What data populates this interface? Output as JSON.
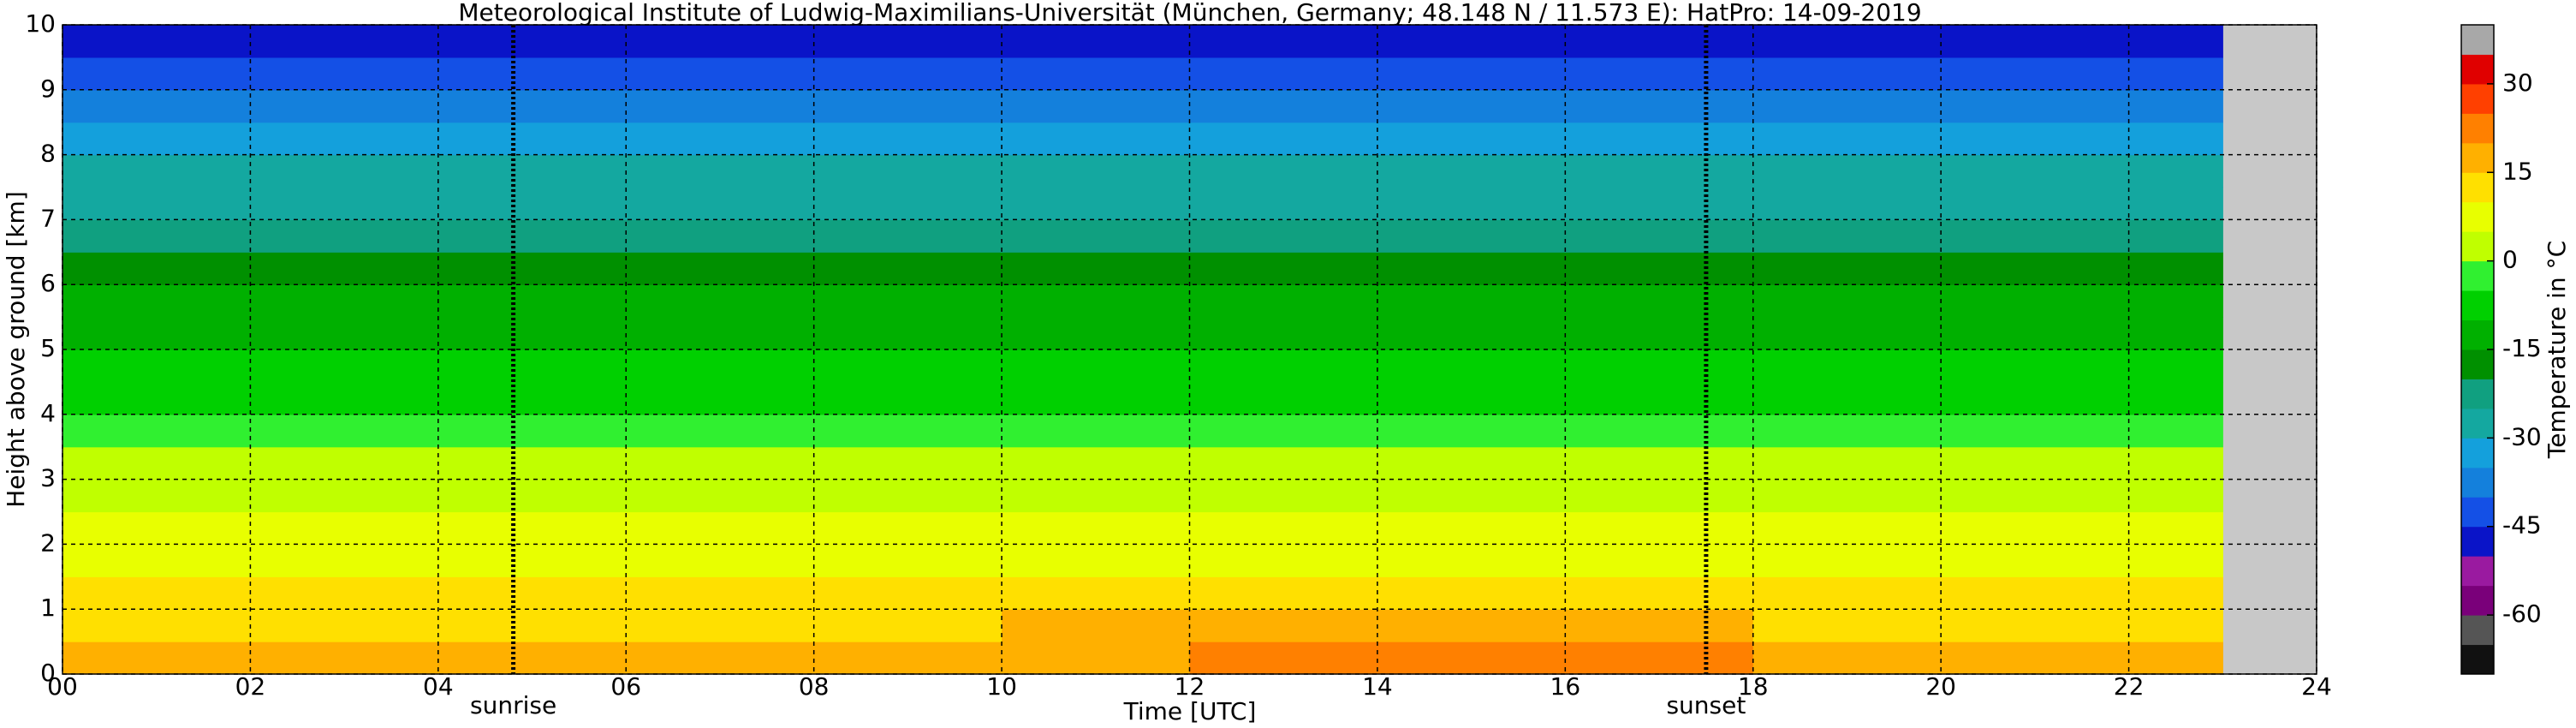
{
  "chart_data": {
    "type": "heatmap",
    "title": "Meteorological Institute of Ludwig-Maximilians-Universität (München, Germany; 48.148 N / 11.573 E):    HatPro: 14-09-2019",
    "xlabel": "Time [UTC]",
    "ylabel": "Height above ground [km]",
    "colorbar_label": "Temperature in °C",
    "xlim": [
      0,
      24
    ],
    "ylim": [
      0,
      10
    ],
    "xticks": [
      {
        "value": 0,
        "label": "00"
      },
      {
        "value": 2,
        "label": "02"
      },
      {
        "value": 4,
        "label": "04"
      },
      {
        "value": 6,
        "label": "06"
      },
      {
        "value": 8,
        "label": "08"
      },
      {
        "value": 10,
        "label": "10"
      },
      {
        "value": 12,
        "label": "12"
      },
      {
        "value": 14,
        "label": "14"
      },
      {
        "value": 16,
        "label": "16"
      },
      {
        "value": 18,
        "label": "18"
      },
      {
        "value": 20,
        "label": "20"
      },
      {
        "value": 22,
        "label": "22"
      },
      {
        "value": 24,
        "label": "24"
      }
    ],
    "yticks": [
      0,
      1,
      2,
      3,
      4,
      5,
      6,
      7,
      8,
      9,
      10
    ],
    "grid": true,
    "clim": [
      -70,
      40
    ],
    "cticks": [
      30,
      15,
      0,
      -15,
      -30,
      -45,
      -60
    ],
    "colormap": [
      "#111111",
      "#555555",
      "#7a007a",
      "#9a1aa0",
      "#0a14c8",
      "#1450e6",
      "#1480dc",
      "#14a0dc",
      "#14a8a0",
      "#10a080",
      "#009000",
      "#00b000",
      "#00d000",
      "#30f030",
      "#c0ff00",
      "#e8ff00",
      "#ffe000",
      "#ffb000",
      "#ff8000",
      "#ff4000",
      "#e00000",
      "#a8a8a8"
    ],
    "x_edges": [
      0,
      2,
      4,
      6,
      8,
      10,
      12,
      14,
      16,
      18,
      20,
      22,
      23
    ],
    "y_edges": [
      0,
      0.5,
      1,
      1.5,
      2,
      2.5,
      3,
      3.5,
      4,
      4.5,
      5,
      5.5,
      6,
      6.5,
      7,
      7.5,
      8,
      8.5,
      9,
      9.5,
      10
    ],
    "values": [
      [
        16,
        15,
        15,
        16,
        17,
        19,
        22,
        22,
        20,
        18,
        17,
        16
      ],
      [
        14,
        13,
        13,
        13,
        14,
        15,
        16,
        16,
        15,
        14,
        14,
        13
      ],
      [
        11,
        11,
        10,
        10,
        11,
        12,
        12,
        12,
        12,
        11,
        11,
        11
      ],
      [
        9,
        9,
        8,
        8,
        9,
        9,
        9,
        9,
        9,
        9,
        9,
        9
      ],
      [
        6,
        6,
        6,
        6,
        6,
        6,
        6,
        6,
        6,
        6,
        6,
        6
      ],
      [
        4,
        4,
        3,
        3,
        4,
        4,
        4,
        4,
        4,
        4,
        4,
        4
      ],
      [
        1,
        1,
        1,
        1,
        1,
        1,
        0,
        0,
        1,
        1,
        1,
        1
      ],
      [
        -3,
        -3,
        -3,
        -2,
        -3,
        -3,
        -3,
        -3,
        -3,
        -3,
        -3,
        -3
      ],
      [
        -6,
        -6,
        -6,
        -6,
        -6,
        -6,
        -6,
        -6,
        -6,
        -6,
        -6,
        -6
      ],
      [
        -9,
        -9,
        -9,
        -9,
        -9,
        -9,
        -9,
        -9,
        -9,
        -9,
        -9,
        -9
      ],
      [
        -12,
        -12,
        -12,
        -12,
        -12,
        -12,
        -12,
        -12,
        -12,
        -12,
        -12,
        -12
      ],
      [
        -15,
        -15,
        -15,
        -15,
        -15,
        -15,
        -15,
        -15,
        -15,
        -15,
        -15,
        -15
      ],
      [
        -18,
        -18,
        -18,
        -18,
        -18,
        -18,
        -18,
        -18,
        -18,
        -18,
        -18,
        -18
      ],
      [
        -21,
        -21,
        -21,
        -21,
        -21,
        -21,
        -21,
        -21,
        -21,
        -21,
        -21,
        -21
      ],
      [
        -26,
        -26,
        -26,
        -26,
        -26,
        -26,
        -26,
        -26,
        -26,
        -26,
        -26,
        -26
      ],
      [
        -30,
        -30,
        -30,
        -30,
        -30,
        -30,
        -30,
        -30,
        -30,
        -30,
        -30,
        -30
      ],
      [
        -34,
        -34,
        -34,
        -34,
        -34,
        -34,
        -34,
        -34,
        -34,
        -34,
        -34,
        -34
      ],
      [
        -38,
        -38,
        -38,
        -38,
        -38,
        -38,
        -38,
        -38,
        -38,
        -38,
        -38,
        -38
      ],
      [
        -42,
        -42,
        -42,
        -42,
        -42,
        -42,
        -42,
        -42,
        -42,
        -42,
        -42,
        -42
      ],
      [
        -48,
        -48,
        -48,
        -48,
        -48,
        -48,
        -48,
        -48,
        -48,
        -48,
        -48,
        -48
      ]
    ],
    "annotations": [
      {
        "x": 4.8,
        "label": "sunrise"
      },
      {
        "x": 17.5,
        "label": "sunset"
      }
    ]
  }
}
